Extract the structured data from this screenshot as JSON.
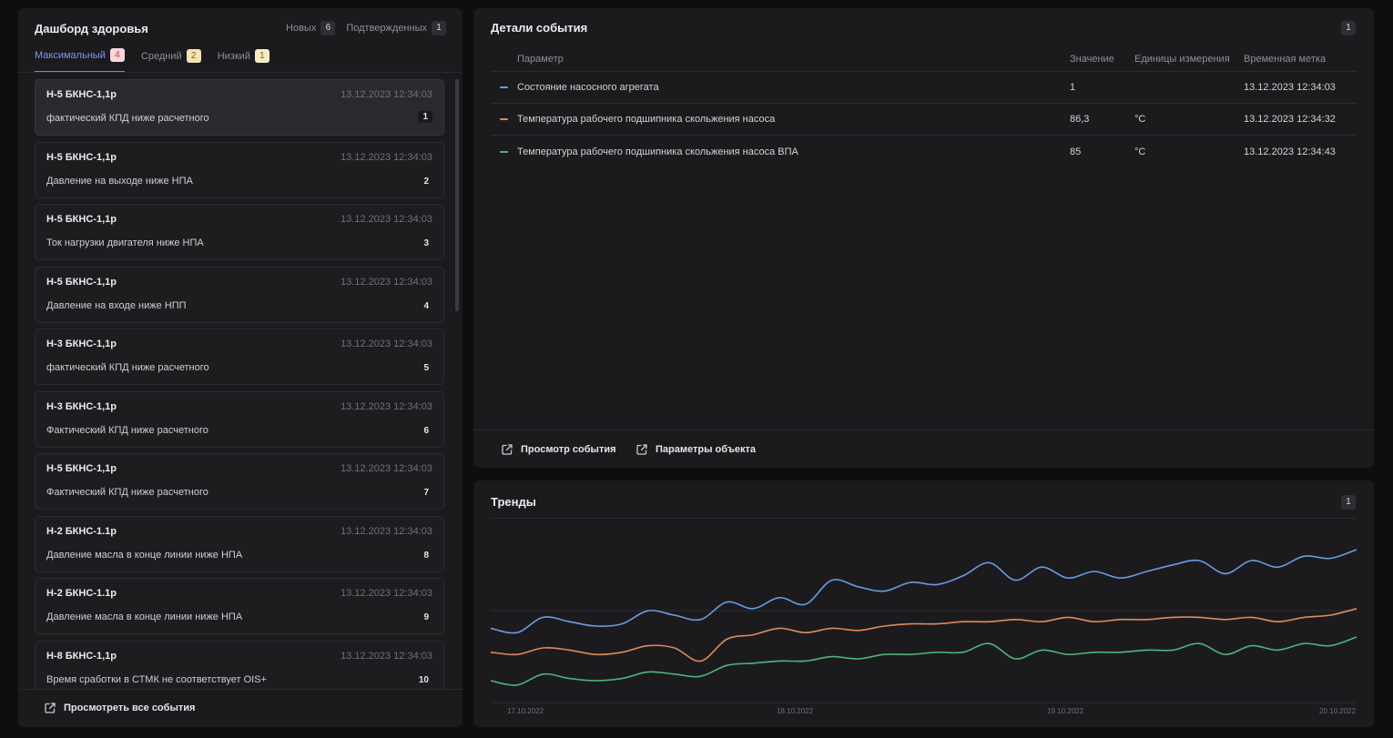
{
  "left": {
    "title": "Дашборд здоровья",
    "counters": [
      {
        "label": "Новых",
        "count": "6"
      },
      {
        "label": "Подтвержденных",
        "count": "1"
      }
    ],
    "tabs": [
      {
        "label": "Максимальный",
        "count": "4",
        "active": true
      },
      {
        "label": "Средний",
        "count": "2"
      },
      {
        "label": "Низкий",
        "count": "1"
      }
    ],
    "events": [
      {
        "object": "Н-5 БКНС-1,1р",
        "time": "13.12.2023 12:34:03",
        "description": "фактический КПД ниже расчетного",
        "num": "1"
      },
      {
        "object": "Н-5 БКНС-1,1р",
        "time": "13.12.2023 12:34:03",
        "description": "Давление на выходе ниже НПА",
        "num": "2"
      },
      {
        "object": "Н-5 БКНС-1,1р",
        "time": "13.12.2023 12:34:03",
        "description": "Ток нагрузки двигателя ниже НПА",
        "num": "3"
      },
      {
        "object": "Н-5 БКНС-1,1р",
        "time": "13.12.2023 12:34:03",
        "description": "Давление на входе ниже НПП",
        "num": "4"
      },
      {
        "object": "Н-3 БКНС-1,1р",
        "time": "13.12.2023 12:34:03",
        "description": "фактический КПД ниже расчетного",
        "num": "5"
      },
      {
        "object": "Н-3 БКНС-1,1р",
        "time": "13.12.2023 12:34:03",
        "description": "Фактический КПД ниже расчетного",
        "num": "6"
      },
      {
        "object": "Н-5 БКНС-1,1р",
        "time": "13.12.2023 12:34:03",
        "description": "Фактический КПД ниже расчетного",
        "num": "7"
      },
      {
        "object": "Н-2 БКНС-1.1р",
        "time": "13.12.2023 12:34:03",
        "description": "Давление масла в конце линии ниже НПА",
        "num": "8"
      },
      {
        "object": "Н-2 БКНС-1.1р",
        "time": "13.12.2023 12:34:03",
        "description": "Давление масла в конце линии ниже НПА",
        "num": "9"
      },
      {
        "object": "Н-8 БКНС-1,1р",
        "time": "13.12.2023 12:34:03",
        "description": "Время сработки в СТМК не соответствует OIS+",
        "num": "10"
      }
    ],
    "footer_link": "Просмотреть все события",
    "footer_icon": "external-link-icon"
  },
  "details": {
    "title": "Детали события",
    "badge": "1",
    "columns": {
      "param": "Параметр",
      "value": "Значение",
      "unit": "Единицы измерения",
      "timestamp": "Временная метка"
    },
    "rows": [
      {
        "param": "Состояние насосного агрегата",
        "value": "1",
        "unit": "",
        "timestamp": "13.12.2023 12:34:03",
        "color": "#6a9be4"
      },
      {
        "param": "Температура рабочего подшипника скольжения насоса",
        "value": "86,3",
        "unit": "°C",
        "timestamp": "13.12.2023 12:34:32",
        "color": "#e08a5c"
      },
      {
        "param": "Температура рабочего подшипника скольжения насоса ВПА",
        "value": "85",
        "unit": "°C",
        "timestamp": "13.12.2023 12:34:43",
        "color": "#4fb37a"
      }
    ],
    "view_event_label": "Просмотр события",
    "object_params_label": "Параметры объекта"
  },
  "trends": {
    "title": "Тренды",
    "badge": "1"
  },
  "chart_data": {
    "type": "line",
    "x_ticks": [
      "17.10.2022",
      "18.10.2022",
      "19.10.2022",
      "20.10.2022"
    ],
    "grid": true,
    "series": [
      {
        "color": "#6a9be4",
        "values": [
          2.4,
          2.2,
          2.9,
          2.7,
          2.5,
          2.6,
          3.2,
          3.0,
          2.8,
          3.6,
          3.3,
          3.8,
          3.5,
          4.6,
          4.3,
          4.1,
          4.5,
          4.4,
          4.8,
          5.4,
          4.6,
          5.2,
          4.7,
          5.0,
          4.7,
          5.0,
          5.3,
          5.5,
          4.9,
          5.5,
          5.2,
          5.7,
          5.6,
          6.0
        ]
      },
      {
        "color": "#e08a5c",
        "values": [
          1.3,
          1.2,
          1.5,
          1.4,
          1.2,
          1.3,
          1.6,
          1.5,
          0.9,
          1.9,
          2.1,
          2.4,
          2.2,
          2.4,
          2.3,
          2.5,
          2.6,
          2.6,
          2.7,
          2.7,
          2.8,
          2.7,
          2.9,
          2.7,
          2.8,
          2.8,
          2.9,
          2.9,
          2.8,
          2.9,
          2.7,
          2.9,
          3.0,
          3.3
        ]
      },
      {
        "color": "#4fb37a",
        "values": [
          0.0,
          -0.2,
          0.3,
          0.1,
          0.0,
          0.1,
          0.4,
          0.3,
          0.2,
          0.7,
          0.8,
          0.9,
          0.9,
          1.1,
          1.0,
          1.2,
          1.2,
          1.3,
          1.3,
          1.7,
          1.0,
          1.4,
          1.2,
          1.3,
          1.3,
          1.4,
          1.4,
          1.7,
          1.2,
          1.6,
          1.4,
          1.7,
          1.6,
          2.0
        ]
      }
    ]
  }
}
